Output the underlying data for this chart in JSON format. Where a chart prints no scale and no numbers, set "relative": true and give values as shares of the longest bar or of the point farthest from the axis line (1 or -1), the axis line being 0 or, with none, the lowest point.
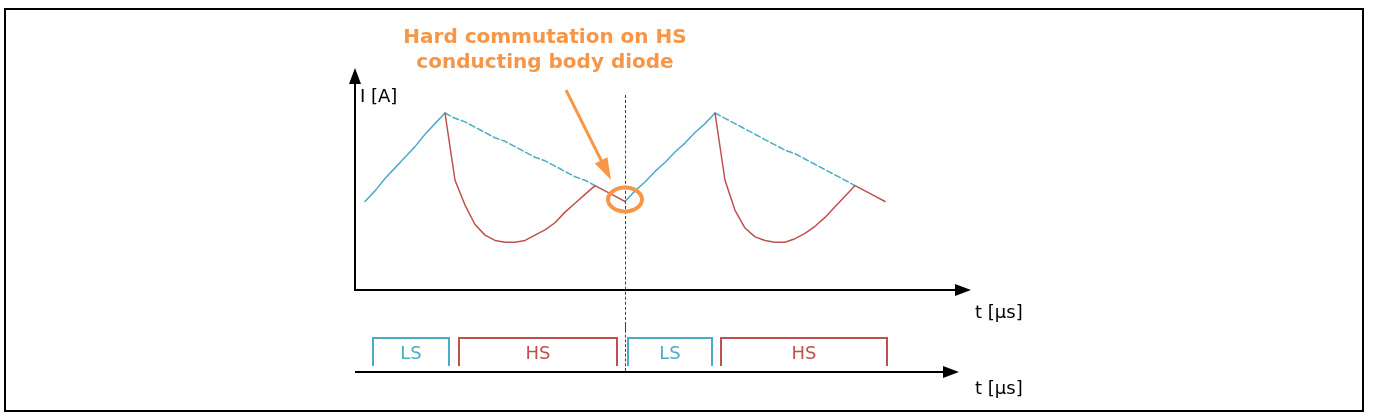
{
  "chart_data": [
    {
      "type": "line",
      "relative": true,
      "ylabel": "I [A]",
      "xlabel": "t [µs]",
      "marker": "none",
      "annotations": [
        "Hard commutation on HS conducting body diode"
      ],
      "categories": [
        null,
        null,
        null,
        null,
        null,
        null,
        null,
        null,
        null,
        null,
        null,
        null,
        null,
        null,
        null,
        null,
        null,
        null,
        null,
        null,
        null,
        null,
        null,
        null,
        null,
        null,
        null,
        null,
        null,
        null,
        null,
        null,
        null,
        null,
        null,
        null,
        null,
        null,
        null,
        null,
        null,
        null,
        null,
        null,
        null,
        null,
        null,
        null,
        null,
        null,
        null,
        null,
        null,
        null,
        null,
        null,
        null,
        null,
        null,
        null,
        null
      ],
      "series": [
        {
          "color": "#4bacc6",
          "line_style": "solid",
          "values": [
            null,
            0.5,
            0.56,
            0.63,
            0.69,
            0.75,
            0.81,
            0.88,
            0.94,
            1,
            null,
            null,
            null,
            null,
            null,
            null,
            null,
            null,
            null,
            null,
            null,
            null,
            null,
            null,
            null,
            null,
            null,
            null,
            null,
            null,
            null,
            null,
            null,
            null,
            null,
            null,
            null,
            null,
            null,
            null,
            null,
            null,
            null,
            null,
            null,
            null,
            null,
            null,
            null,
            null,
            null,
            null,
            null,
            null,
            null,
            null,
            null,
            null,
            null,
            null,
            null
          ]
        },
        {
          "color": "#4bacc6",
          "line_style": "solid",
          "values": [
            null,
            null,
            null,
            null,
            null,
            null,
            null,
            null,
            null,
            null,
            null,
            null,
            null,
            null,
            null,
            null,
            null,
            null,
            null,
            null,
            null,
            null,
            null,
            null,
            null,
            null,
            null,
            0.5,
            0.56,
            0.61,
            0.67,
            0.72,
            0.78,
            0.83,
            0.89,
            0.94,
            1,
            null,
            null,
            null,
            null,
            null,
            null,
            null,
            null,
            null,
            null,
            null,
            null,
            null,
            null,
            null,
            null,
            null,
            null,
            null,
            null,
            null,
            null,
            null,
            null
          ]
        },
        {
          "color": "#4bacc6",
          "line_style": "dashed",
          "values": [
            null,
            null,
            null,
            null,
            null,
            null,
            null,
            null,
            null,
            1,
            0.97,
            0.95,
            0.92,
            0.89,
            0.86,
            0.84,
            0.81,
            0.78,
            0.75,
            0.73,
            0.7,
            0.67,
            0.64,
            0.62,
            0.59,
            null,
            null,
            null,
            null,
            null,
            null,
            null,
            null,
            null,
            null,
            null,
            null,
            null,
            null,
            null,
            null,
            null,
            null,
            null,
            null,
            null,
            null,
            null,
            null,
            null,
            null,
            null,
            null,
            null,
            null,
            null,
            null,
            null,
            null,
            null,
            null
          ]
        },
        {
          "color": "#4bacc6",
          "line_style": "dashed",
          "values": [
            null,
            null,
            null,
            null,
            null,
            null,
            null,
            null,
            null,
            null,
            null,
            null,
            null,
            null,
            null,
            null,
            null,
            null,
            null,
            null,
            null,
            null,
            null,
            null,
            null,
            null,
            null,
            null,
            null,
            null,
            null,
            null,
            null,
            null,
            null,
            null,
            1,
            0.97,
            0.94,
            0.91,
            0.88,
            0.85,
            0.82,
            0.79,
            0.77,
            0.74,
            0.71,
            0.68,
            0.65,
            0.62,
            0.59,
            null,
            null,
            null,
            null,
            null,
            null,
            null,
            null,
            null,
            null
          ]
        },
        {
          "color": "#c0504d",
          "line_style": "solid",
          "values": [
            null,
            null,
            null,
            null,
            null,
            null,
            null,
            null,
            null,
            1,
            0.62,
            0.48,
            0.37,
            0.31,
            0.28,
            0.27,
            0.27,
            0.28,
            0.31,
            0.34,
            0.38,
            0.44,
            0.49,
            0.54,
            0.59,
            0.56,
            0.53,
            0.5,
            null,
            null,
            null,
            null,
            null,
            null,
            null,
            null,
            null,
            null,
            null,
            null,
            null,
            null,
            null,
            null,
            null,
            null,
            null,
            null,
            null,
            null,
            null,
            null,
            null,
            null,
            null,
            null,
            null,
            null,
            null,
            null,
            null
          ]
        },
        {
          "color": "#c0504d",
          "line_style": "solid",
          "values": [
            null,
            null,
            null,
            null,
            null,
            null,
            null,
            null,
            null,
            null,
            null,
            null,
            null,
            null,
            null,
            null,
            null,
            null,
            null,
            null,
            null,
            null,
            null,
            null,
            null,
            null,
            null,
            null,
            null,
            null,
            null,
            null,
            null,
            null,
            null,
            null,
            1,
            0.62,
            0.45,
            0.35,
            0.3,
            0.28,
            0.27,
            0.27,
            0.29,
            0.32,
            0.36,
            0.41,
            0.47,
            0.53,
            0.59,
            0.56,
            0.53,
            0.5,
            null,
            null,
            null,
            null,
            null,
            null,
            null
          ]
        }
      ]
    },
    {
      "type": "other",
      "xlabel": "t [µs]",
      "categories": [
        "LS",
        "HS",
        "LS",
        "HS"
      ],
      "colors": [
        "#4bacc6",
        "#c0504d",
        "#4bacc6",
        "#c0504d"
      ]
    }
  ]
}
